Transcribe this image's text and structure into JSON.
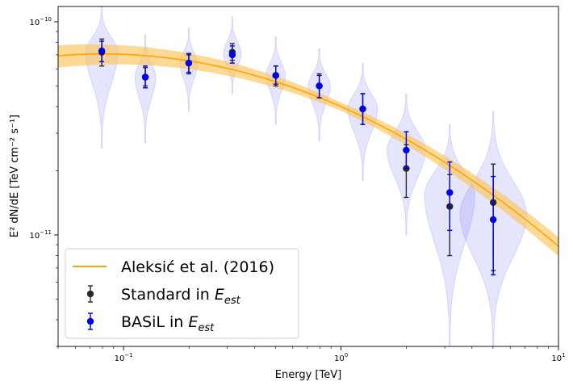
{
  "chart_data": {
    "type": "scatter",
    "xscale": "log",
    "yscale": "log",
    "xlabel": "Energy [TeV]",
    "ylabel": "E² dN/dE [TeV cm⁻² s⁻¹]",
    "xlim": [
      0.05,
      10
    ],
    "ylim": [
      3e-12,
      1.18e-10
    ],
    "x_ticks": [
      {
        "value": 0.1,
        "mantissa": "10",
        "exp": "−1"
      },
      {
        "value": 1,
        "mantissa": "10",
        "exp": "0"
      },
      {
        "value": 10,
        "mantissa": "10",
        "exp": "1"
      }
    ],
    "y_ticks": [
      {
        "value": 1e-11,
        "mantissa": "10",
        "exp": "−11"
      },
      {
        "value": 1e-10,
        "mantissa": "10",
        "exp": "−10"
      }
    ],
    "reference_curve": {
      "name": "Aleksić et al. (2016)",
      "color": "#ffa500",
      "band_color": "#fbc45a",
      "model": "log-parabola",
      "norm_at_1TeV": 4e-11,
      "alpha": -2.45,
      "beta": 0.205,
      "band_fraction_low": 0.045,
      "band_fraction_high": 0.12
    },
    "series": [
      {
        "name": "Standard in E_est",
        "label_main": "Standard in ",
        "label_var": "E",
        "label_sub": "est",
        "color": "#2a2a2a",
        "x": [
          0.0794,
          0.1259,
          0.1995,
          0.3162,
          0.5012,
          0.7943,
          1.2589,
          1.9953,
          3.1623,
          5.0119
        ],
        "y": [
          7.2e-11,
          5.5e-11,
          6.4e-11,
          7.2e-11,
          5.6e-11,
          5e-11,
          3.9e-11,
          2.05e-11,
          1.36e-11,
          1.42e-11
        ],
        "y_low": [
          6.2e-11,
          5e-11,
          5.8e-11,
          6.6e-11,
          5e-11,
          4.4e-11,
          3.3e-11,
          1.5e-11,
          8e-12,
          6.8e-12
        ],
        "y_high": [
          8.3e-11,
          6.1e-11,
          7e-11,
          7.9e-11,
          6.2e-11,
          5.7e-11,
          4.6e-11,
          2.65e-11,
          1.92e-11,
          2.15e-11
        ]
      },
      {
        "name": "BASiL in E_est",
        "label_main": "BASiL in ",
        "label_var": "E",
        "label_sub": "est",
        "color": "#0000e6",
        "x": [
          0.0794,
          0.1259,
          0.1995,
          0.3162,
          0.5012,
          0.7943,
          1.2589,
          1.9953,
          3.1623,
          5.0119
        ],
        "y": [
          7.3e-11,
          5.5e-11,
          6.4e-11,
          7e-11,
          5.6e-11,
          5e-11,
          3.9e-11,
          2.5e-11,
          1.58e-11,
          1.18e-11
        ],
        "y_low": [
          6.5e-11,
          4.9e-11,
          5.7e-11,
          6.4e-11,
          5.1e-11,
          4.4e-11,
          3.3e-11,
          2.05e-11,
          1.05e-11,
          6.5e-12
        ],
        "y_high": [
          8.1e-11,
          6.2e-11,
          7.1e-11,
          7.7e-11,
          6.2e-11,
          5.6e-11,
          4.6e-11,
          3.05e-11,
          2.2e-11,
          1.88e-11
        ]
      }
    ],
    "violins": [
      {
        "x": 0.0794,
        "y_min": 2.55e-11,
        "y_max": 1.18e-10,
        "mode": 7.2e-11,
        "spread": 0.22
      },
      {
        "x": 0.1259,
        "y_min": 2.7e-11,
        "y_max": 8.7e-11,
        "mode": 5.5e-11,
        "spread": 0.14
      },
      {
        "x": 0.1995,
        "y_min": 3.8e-11,
        "y_max": 9.3e-11,
        "mode": 6.4e-11,
        "spread": 0.12
      },
      {
        "x": 0.3162,
        "y_min": 4.6e-11,
        "y_max": 1.05e-10,
        "mode": 7.1e-11,
        "spread": 0.12
      },
      {
        "x": 0.5012,
        "y_min": 3.3e-11,
        "y_max": 8.5e-11,
        "mode": 5.6e-11,
        "spread": 0.13
      },
      {
        "x": 0.7943,
        "y_min": 2.75e-11,
        "y_max": 7.5e-11,
        "mode": 5e-11,
        "spread": 0.15
      },
      {
        "x": 1.2589,
        "y_min": 1.8e-11,
        "y_max": 6.4e-11,
        "mode": 3.9e-11,
        "spread": 0.2
      },
      {
        "x": 1.9953,
        "y_min": 1e-11,
        "y_max": 4.6e-11,
        "mode": 2.5e-11,
        "spread": 0.26
      },
      {
        "x": 3.1623,
        "y_min": 3e-12,
        "y_max": 3.3e-11,
        "mode": 1.55e-11,
        "spread": 0.34
      },
      {
        "x": 5.0119,
        "y_min": 3e-12,
        "y_max": 3.8e-11,
        "mode": 1.25e-11,
        "spread": 0.45
      }
    ],
    "violin_color": "#6e6ef5",
    "legend": {
      "location": "lower-left",
      "entries": [
        "Aleksić et al. (2016)",
        "Standard in E_est",
        "BASiL in E_est"
      ]
    }
  }
}
